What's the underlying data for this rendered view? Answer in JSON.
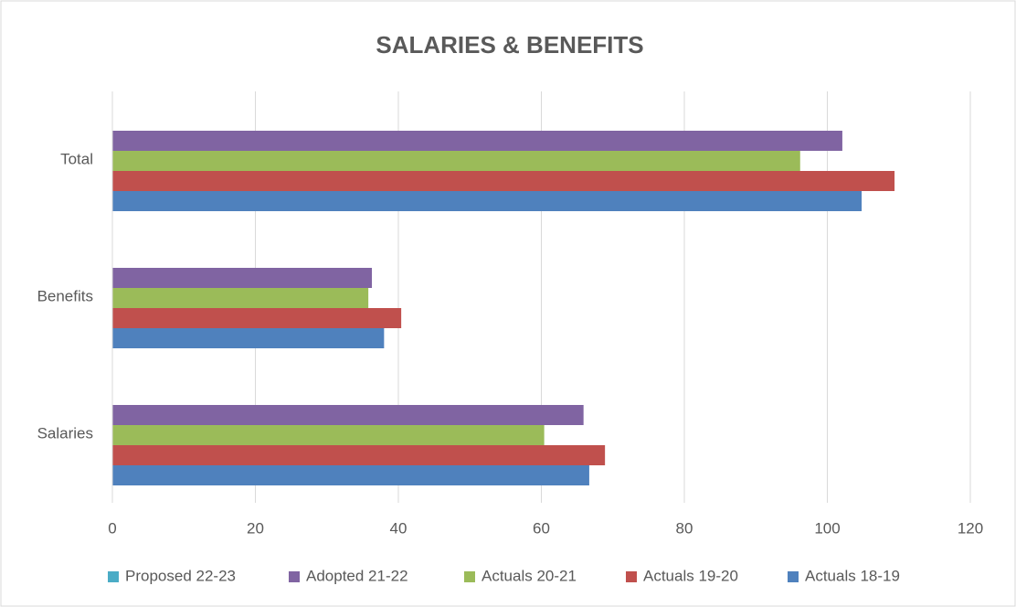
{
  "chart_data": {
    "type": "barh",
    "title": "SALARIES & BENEFITS",
    "categories": [
      "Salaries",
      "Benefits",
      "Total"
    ],
    "series": [
      {
        "name": "Proposed 22-23",
        "color": "#4bacc6",
        "values": [
          null,
          null,
          null
        ]
      },
      {
        "name": "Adopted 21-22",
        "color": "#8064a2",
        "values": [
          65.9,
          36.3,
          102.1
        ]
      },
      {
        "name": "Actuals 20-21",
        "color": "#9bbb59",
        "values": [
          60.4,
          35.8,
          96.2
        ]
      },
      {
        "name": "Actuals 19-20",
        "color": "#c0504d",
        "values": [
          68.9,
          40.4,
          109.4
        ]
      },
      {
        "name": "Actuals 18-19",
        "color": "#4f81bd",
        "values": [
          66.7,
          38.0,
          104.8
        ]
      }
    ],
    "xlim": [
      0,
      120
    ],
    "xticks": [
      0,
      20,
      40,
      60,
      80,
      100,
      120
    ],
    "grid": true,
    "legend": "bottom"
  }
}
